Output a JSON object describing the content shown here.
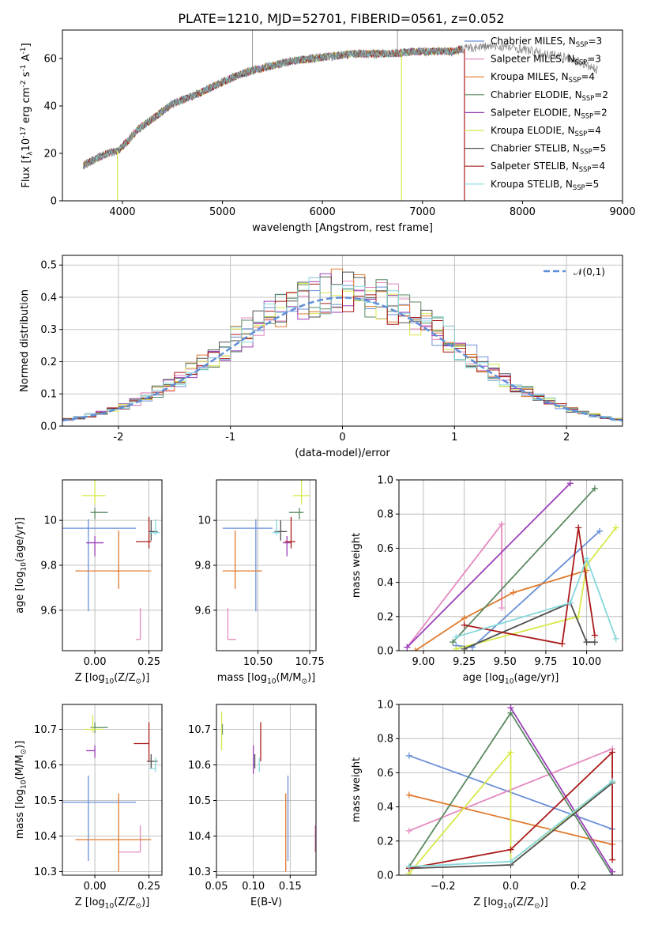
{
  "figure": {
    "title": "PLATE=1210, MJD=52701, FIBERID=0561, z=0.052"
  },
  "chart_data": [
    {
      "id": "spectrum",
      "type": "line",
      "xlabel": "wavelength [Angstrom, rest frame]",
      "ylabel": "Flux [f$_\\lambda$10$^{-17}$ erg cm$^{-2}$ s$^{-1}$ A$^{-1}$]",
      "xlim": [
        3400,
        9000
      ],
      "ylim": [
        0,
        72
      ],
      "xticks": [
        4000,
        5000,
        6000,
        7000,
        8000,
        9000
      ],
      "yticks": [
        0,
        20,
        40,
        60
      ],
      "grid": false,
      "legend_position": "right",
      "legend": [
        {
          "label": "Chabrier MILES, N$_{SSP}$=3",
          "color": "#6a8fd8"
        },
        {
          "label": "Salpeter MILES, N$_{SSP}$=3",
          "color": "#e58ac0"
        },
        {
          "label": "Kroupa MILES, N$_{SSP}$=4",
          "color": "#e07a2e"
        },
        {
          "label": "Chabrier ELODIE, N$_{SSP}$=2",
          "color": "#5a8a62"
        },
        {
          "label": "Salpeter ELODIE, N$_{SSP}$=2",
          "color": "#9c3fb8"
        },
        {
          "label": "Kroupa ELODIE, N$_{SSP}$=4",
          "color": "#d8e84a"
        },
        {
          "label": "Chabrier STELIB, N$_{SSP}$=5",
          "color": "#505050"
        },
        {
          "label": "Salpeter STELIB, N$_{SSP}$=4",
          "color": "#aa1a1a"
        },
        {
          "label": "Kroupa STELIB, N$_{SSP}$=5",
          "color": "#86d8dc"
        }
      ],
      "data_color": "#7f7f7f",
      "continuum_x": [
        3610,
        3750,
        3850,
        3950,
        4050,
        4150,
        4250,
        4350,
        4500,
        4700,
        4900,
        5100,
        5300,
        5500,
        5700,
        5900,
        6100,
        6300,
        6500,
        6700,
        6900,
        7100,
        7300,
        7400,
        7600,
        7800,
        8000,
        8200,
        8400,
        8600,
        8750
      ],
      "continuum_y": [
        15,
        18,
        20,
        21,
        25,
        30,
        33,
        36,
        41,
        44,
        48,
        52,
        55,
        57,
        59,
        60,
        61,
        62,
        62,
        62,
        63,
        63,
        63,
        64,
        65,
        65,
        64,
        62,
        61,
        58,
        55
      ],
      "model_end_x": [
        7400,
        7400,
        7400,
        7400,
        7400,
        7400,
        7400,
        7400,
        7400
      ],
      "dropouts_x": [
        3950,
        6790,
        7420
      ],
      "emission_x": [
        5300,
        6750
      ]
    },
    {
      "id": "residuals",
      "type": "histogram",
      "xlabel": "(data-model)/error",
      "ylabel": "Normed distribution",
      "xlim": [
        -2.5,
        2.5
      ],
      "ylim": [
        0,
        0.53
      ],
      "xticks": [
        -2,
        -1,
        0,
        1,
        2
      ],
      "yticks": [
        0.0,
        0.1,
        0.2,
        0.3,
        0.4,
        0.5
      ],
      "grid": true,
      "legend_position": "upper right",
      "legend": [
        {
          "label": "$\\mathcal{N}(0,1)$",
          "color": "#5f8fd8",
          "style": "dashed"
        }
      ],
      "bin_width": 0.1,
      "bin_start": -2.5
    },
    {
      "id": "age-vs-Z",
      "type": "errorbar",
      "xlabel": "Z [log$_{10}$($Z/Z_\\odot$)]",
      "ylabel": "age  [log$_{10}$($age/yr$)]",
      "xlim": [
        -0.15,
        0.31
      ],
      "ylim": [
        9.42,
        10.18
      ],
      "xticks": [
        0.0,
        0.25
      ],
      "xtick_labels": [
        "0.00",
        "0.25"
      ],
      "yticks": [
        9.6,
        9.8,
        10.0
      ],
      "grid": true,
      "points": [
        {
          "color": "#6a8fd8",
          "x": -0.03,
          "xerr": [
            0.12,
            0.22
          ],
          "y": 9.965,
          "yerr": [
            0.37,
            0.04
          ]
        },
        {
          "color": "#e58ac0",
          "x": 0.21,
          "xerr": [
            0.02,
            0.0
          ],
          "y": 9.47,
          "yerr": [
            0.0,
            0.14
          ]
        },
        {
          "color": "#e07a2e",
          "x": 0.11,
          "xerr": [
            0.2,
            0.15
          ],
          "y": 9.775,
          "yerr": [
            0.08,
            0.18
          ]
        },
        {
          "color": "#5a8a62",
          "x": 0.0,
          "xerr": [
            0.02,
            0.06
          ],
          "y": 10.035,
          "yerr": [
            0.03,
            0.02
          ]
        },
        {
          "color": "#9c3fb8",
          "x": 0.0,
          "xerr": [
            0.04,
            0.04
          ],
          "y": 9.9,
          "yerr": [
            0.06,
            0.03
          ]
        },
        {
          "color": "#d8e84a",
          "x": 0.0,
          "xerr": [
            0.06,
            0.05
          ],
          "y": 10.11,
          "yerr": [
            0.04,
            0.07
          ]
        },
        {
          "color": "#505050",
          "x": 0.26,
          "xerr": [
            0.01,
            0.03
          ],
          "y": 9.95,
          "yerr": [
            0.04,
            0.05
          ]
        },
        {
          "color": "#aa1a1a",
          "x": 0.25,
          "xerr": [
            0.06,
            0.01
          ],
          "y": 9.905,
          "yerr": [
            0.03,
            0.11
          ]
        },
        {
          "color": "#86d8dc",
          "x": 0.28,
          "xerr": [
            0.03,
            0.02
          ],
          "y": 9.945,
          "yerr": [
            0.01,
            0.06
          ]
        }
      ]
    },
    {
      "id": "age-vs-mass",
      "type": "errorbar",
      "xlabel": "mass [log$_{10}$($M/M_\\odot$)]",
      "ylabel": "",
      "xlim": [
        10.3,
        10.78
      ],
      "ylim": [
        9.42,
        10.18
      ],
      "xticks": [
        10.5,
        10.75
      ],
      "xtick_labels": [
        "10.50",
        "10.75"
      ],
      "yticks": [
        9.6,
        9.8,
        10.0
      ],
      "grid": true,
      "points": [
        {
          "color": "#6a8fd8",
          "x": 10.49,
          "xerr": [
            0.16,
            0.08
          ],
          "y": 9.965,
          "yerr": [
            0.37,
            0.04
          ]
        },
        {
          "color": "#e58ac0",
          "x": 10.355,
          "xerr": [
            0.0,
            0.04
          ],
          "y": 9.47,
          "yerr": [
            0.0,
            0.14
          ]
        },
        {
          "color": "#e07a2e",
          "x": 10.39,
          "xerr": [
            0.06,
            0.13
          ],
          "y": 9.775,
          "yerr": [
            0.08,
            0.18
          ]
        },
        {
          "color": "#5a8a62",
          "x": 10.7,
          "xerr": [
            0.05,
            0.02
          ],
          "y": 10.035,
          "yerr": [
            0.03,
            0.02
          ]
        },
        {
          "color": "#9c3fb8",
          "x": 10.64,
          "xerr": [
            0.02,
            0.02
          ],
          "y": 9.9,
          "yerr": [
            0.06,
            0.03
          ]
        },
        {
          "color": "#d8e84a",
          "x": 10.71,
          "xerr": [
            0.04,
            0.04
          ],
          "y": 10.11,
          "yerr": [
            0.04,
            0.07
          ]
        },
        {
          "color": "#505050",
          "x": 10.61,
          "xerr": [
            0.03,
            0.03
          ],
          "y": 9.95,
          "yerr": [
            0.04,
            0.05
          ]
        },
        {
          "color": "#aa1a1a",
          "x": 10.66,
          "xerr": [
            0.03,
            0.02
          ],
          "y": 9.905,
          "yerr": [
            0.03,
            0.11
          ]
        },
        {
          "color": "#86d8dc",
          "x": 10.59,
          "xerr": [
            0.02,
            0.02
          ],
          "y": 9.945,
          "yerr": [
            0.01,
            0.06
          ]
        }
      ]
    },
    {
      "id": "massweight-vs-age",
      "type": "line",
      "xlabel": "age  [log$_{10}$($age/yr$)]",
      "ylabel": "mass weight",
      "xlim": [
        8.85,
        10.22
      ],
      "ylim": [
        0,
        1.0
      ],
      "xticks": [
        9.0,
        9.25,
        9.5,
        9.75,
        10.0
      ],
      "xtick_labels": [
        "9.00",
        "9.25",
        "9.50",
        "9.75",
        "10.00"
      ],
      "yticks": [
        0.0,
        0.2,
        0.4,
        0.6,
        0.8,
        1.0
      ],
      "grid": true,
      "series": [
        {
          "color": "#6a8fd8",
          "x": [
            9.2,
            9.3,
            10.08
          ],
          "y": [
            0.03,
            0.02,
            0.7
          ]
        },
        {
          "color": "#e58ac0",
          "x": [
            8.9,
            9.48,
            9.48
          ],
          "y": [
            0.02,
            0.74,
            0.25
          ]
        },
        {
          "color": "#e07a2e",
          "x": [
            8.95,
            9.25,
            9.55,
            10.0
          ],
          "y": [
            0.0,
            0.19,
            0.34,
            0.47
          ]
        },
        {
          "color": "#5a8a62",
          "x": [
            9.18,
            10.05
          ],
          "y": [
            0.05,
            0.95
          ]
        },
        {
          "color": "#9c3fb8",
          "x": [
            8.9,
            9.9
          ],
          "y": [
            0.02,
            0.98
          ]
        },
        {
          "color": "#d8e84a",
          "x": [
            9.2,
            9.95,
            10.0,
            10.18
          ],
          "y": [
            0.01,
            0.2,
            0.5,
            0.72
          ]
        },
        {
          "color": "#505050",
          "x": [
            9.25,
            9.9,
            10.0,
            10.05
          ],
          "y": [
            0.01,
            0.28,
            0.05,
            0.05
          ]
        },
        {
          "color": "#aa1a1a",
          "x": [
            9.25,
            9.85,
            9.95,
            10.05
          ],
          "y": [
            0.15,
            0.04,
            0.72,
            0.09
          ]
        },
        {
          "color": "#86d8dc",
          "x": [
            9.2,
            9.9,
            10.0,
            10.18
          ],
          "y": [
            0.08,
            0.28,
            0.54,
            0.07
          ]
        }
      ]
    },
    {
      "id": "mass-vs-Z",
      "type": "errorbar",
      "xlabel": "Z [log$_{10}$($Z/Z_\\odot$)]",
      "ylabel": "mass [log$_{10}$($M/M_\\odot$)]",
      "xlim": [
        -0.15,
        0.31
      ],
      "ylim": [
        10.29,
        10.77
      ],
      "xticks": [
        0.0,
        0.25
      ],
      "xtick_labels": [
        "0.00",
        "0.25"
      ],
      "yticks": [
        10.3,
        10.4,
        10.5,
        10.6,
        10.7
      ],
      "grid": true,
      "points": [
        {
          "color": "#6a8fd8",
          "x": -0.03,
          "xerr": [
            0.12,
            0.22
          ],
          "y": 10.495,
          "yerr": [
            0.165,
            0.075
          ]
        },
        {
          "color": "#e58ac0",
          "x": 0.21,
          "xerr": [
            0.1,
            0.0
          ],
          "y": 10.355,
          "yerr": [
            0.0,
            0.075
          ]
        },
        {
          "color": "#e07a2e",
          "x": 0.11,
          "xerr": [
            0.2,
            0.15
          ],
          "y": 10.39,
          "yerr": [
            0.09,
            0.13
          ]
        },
        {
          "color": "#5a8a62",
          "x": 0.0,
          "xerr": [
            0.02,
            0.06
          ],
          "y": 10.705,
          "yerr": [
            0.015,
            0.015
          ]
        },
        {
          "color": "#9c3fb8",
          "x": 0.0,
          "xerr": [
            0.04,
            0.0
          ],
          "y": 10.64,
          "yerr": [
            0.02,
            0.015
          ]
        },
        {
          "color": "#d8e84a",
          "x": -0.01,
          "xerr": [
            0.04,
            0.05
          ],
          "y": 10.7,
          "yerr": [
            0.01,
            0.04
          ]
        },
        {
          "color": "#505050",
          "x": 0.26,
          "xerr": [
            0.02,
            0.03
          ],
          "y": 10.61,
          "yerr": [
            0.02,
            0.02
          ]
        },
        {
          "color": "#aa1a1a",
          "x": 0.25,
          "xerr": [
            0.07,
            0.0
          ],
          "y": 10.66,
          "yerr": [
            0.05,
            0.06
          ]
        },
        {
          "color": "#86d8dc",
          "x": 0.28,
          "xerr": [
            0.03,
            0.0
          ],
          "y": 10.59,
          "yerr": [
            0.01,
            0.03
          ]
        }
      ]
    },
    {
      "id": "mass-vs-ebv",
      "type": "errorbar",
      "xlabel": "E(B-V)",
      "ylabel": "",
      "xlim": [
        0.05,
        0.185
      ],
      "ylim": [
        10.29,
        10.77
      ],
      "xticks": [
        0.05,
        0.1,
        0.15
      ],
      "xtick_labels": [
        "0.05",
        "0.10",
        "0.15"
      ],
      "yticks": [
        10.3,
        10.4,
        10.5,
        10.6,
        10.7
      ],
      "grid": true,
      "points": [
        {
          "color": "#6a8fd8",
          "x": 0.147,
          "xerr": [
            0,
            0
          ],
          "y": 10.495,
          "yerr": [
            0.165,
            0.075
          ]
        },
        {
          "color": "#e58ac0",
          "x": 0.184,
          "xerr": [
            0,
            0
          ],
          "y": 10.395,
          "yerr": [
            0.04,
            0.035
          ]
        },
        {
          "color": "#e07a2e",
          "x": 0.144,
          "xerr": [
            0,
            0
          ],
          "y": 10.39,
          "yerr": [
            0.09,
            0.13
          ]
        },
        {
          "color": "#5a8a62",
          "x": 0.058,
          "xerr": [
            0,
            0
          ],
          "y": 10.7,
          "yerr": [
            0.015,
            0.015
          ]
        },
        {
          "color": "#9c3fb8",
          "x": 0.1,
          "xerr": [
            0,
            0
          ],
          "y": 10.615,
          "yerr": [
            0.04,
            0.04
          ]
        },
        {
          "color": "#d8e84a",
          "x": 0.057,
          "xerr": [
            0,
            0
          ],
          "y": 10.69,
          "yerr": [
            0.05,
            0.06
          ]
        },
        {
          "color": "#505050",
          "x": 0.102,
          "xerr": [
            0,
            0
          ],
          "y": 10.61,
          "yerr": [
            0.02,
            0.02
          ]
        },
        {
          "color": "#aa1a1a",
          "x": 0.11,
          "xerr": [
            0,
            0
          ],
          "y": 10.66,
          "yerr": [
            0.05,
            0.06
          ]
        },
        {
          "color": "#86d8dc",
          "x": 0.108,
          "xerr": [
            0,
            0
          ],
          "y": 10.59,
          "yerr": [
            0.01,
            0.03
          ]
        }
      ]
    },
    {
      "id": "massweight-vs-Z",
      "type": "line",
      "xlabel": "Z [log$_{10}$($Z/Z_\\odot$)]",
      "ylabel": "mass weight",
      "xlim": [
        -0.33,
        0.33
      ],
      "ylim": [
        0,
        1.0
      ],
      "xticks": [
        -0.2,
        0.0,
        0.2
      ],
      "xtick_labels": [
        "−0.2",
        "0.0",
        "0.2"
      ],
      "yticks": [
        0.0,
        0.2,
        0.4,
        0.6,
        0.8,
        1.0
      ],
      "grid": true,
      "series": [
        {
          "color": "#6a8fd8",
          "x": [
            -0.3,
            0.3
          ],
          "y": [
            0.7,
            0.27
          ]
        },
        {
          "color": "#e58ac0",
          "x": [
            -0.3,
            0.3
          ],
          "y": [
            0.26,
            0.74
          ]
        },
        {
          "color": "#e07a2e",
          "x": [
            -0.3,
            0.3
          ],
          "y": [
            0.47,
            0.18
          ]
        },
        {
          "color": "#5a8a62",
          "x": [
            -0.3,
            0.0,
            0.3
          ],
          "y": [
            0.05,
            0.95,
            0.0
          ]
        },
        {
          "color": "#9c3fb8",
          "x": [
            0.0,
            0.3
          ],
          "y": [
            0.98,
            0.02
          ]
        },
        {
          "color": "#d8e84a",
          "x": [
            -0.3,
            0.0,
            0.0,
            0.3
          ],
          "y": [
            0.01,
            0.72,
            0.08,
            0.54
          ]
        },
        {
          "color": "#505050",
          "x": [
            -0.3,
            0.0,
            0.3
          ],
          "y": [
            0.04,
            0.06,
            0.54
          ]
        },
        {
          "color": "#aa1a1a",
          "x": [
            -0.3,
            0.0,
            0.3,
            0.3
          ],
          "y": [
            0.04,
            0.15,
            0.72,
            0.09
          ]
        },
        {
          "color": "#86d8dc",
          "x": [
            -0.3,
            0.0,
            0.3
          ],
          "y": [
            0.05,
            0.08,
            0.55
          ]
        }
      ]
    }
  ]
}
